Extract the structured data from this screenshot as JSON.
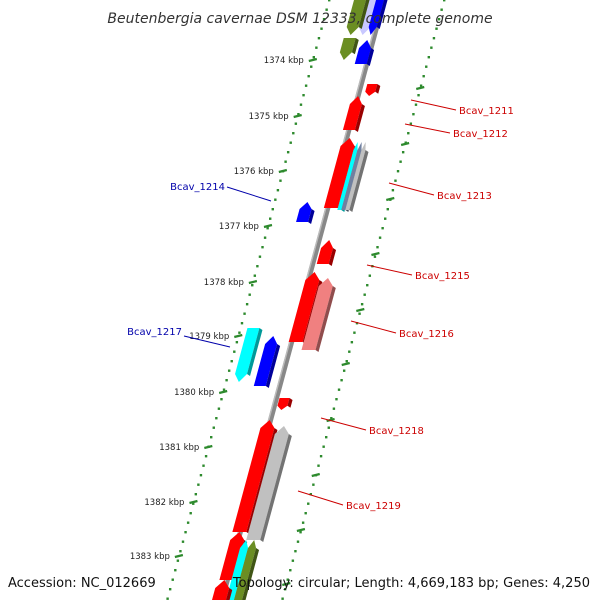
{
  "title": "Beutenbergia cavernae DSM 12333, complete genome",
  "footer": {
    "accession": "Accession: NC_012669",
    "summary": "Topology: circular; Length: 4,669,183 bp; Genes: 4,250"
  },
  "scale": {
    "labels": [
      "1374 kbp",
      "1375 kbp",
      "1376 kbp",
      "1377 kbp",
      "1378 kbp",
      "1379 kbp",
      "1380 kbp",
      "1381 kbp",
      "1382 kbp",
      "1383 kbp"
    ]
  },
  "colors": {
    "backbone": "#888888",
    "scale_dots": "#2d8a2d",
    "forward_label": "#cc0000",
    "reverse_label": "#0000aa",
    "red": "#ff0000",
    "pink": "#f08080",
    "blue": "#0000ff",
    "cyan": "#00ffff",
    "olive": "#6b8e23",
    "grey": "#c0c0c0",
    "slate": "#7080a0",
    "lavender": "#c8c8ff"
  },
  "gene_labels": [
    {
      "text": "Bcav_1211",
      "strand": "forward"
    },
    {
      "text": "Bcav_1212",
      "strand": "forward"
    },
    {
      "text": "Bcav_1213",
      "strand": "forward"
    },
    {
      "text": "Bcav_1214",
      "strand": "reverse"
    },
    {
      "text": "Bcav_1215",
      "strand": "forward"
    },
    {
      "text": "Bcav_1216",
      "strand": "forward"
    },
    {
      "text": "Bcav_1217",
      "strand": "reverse"
    },
    {
      "text": "Bcav_1218",
      "strand": "forward"
    },
    {
      "text": "Bcav_1219",
      "strand": "forward"
    }
  ]
}
